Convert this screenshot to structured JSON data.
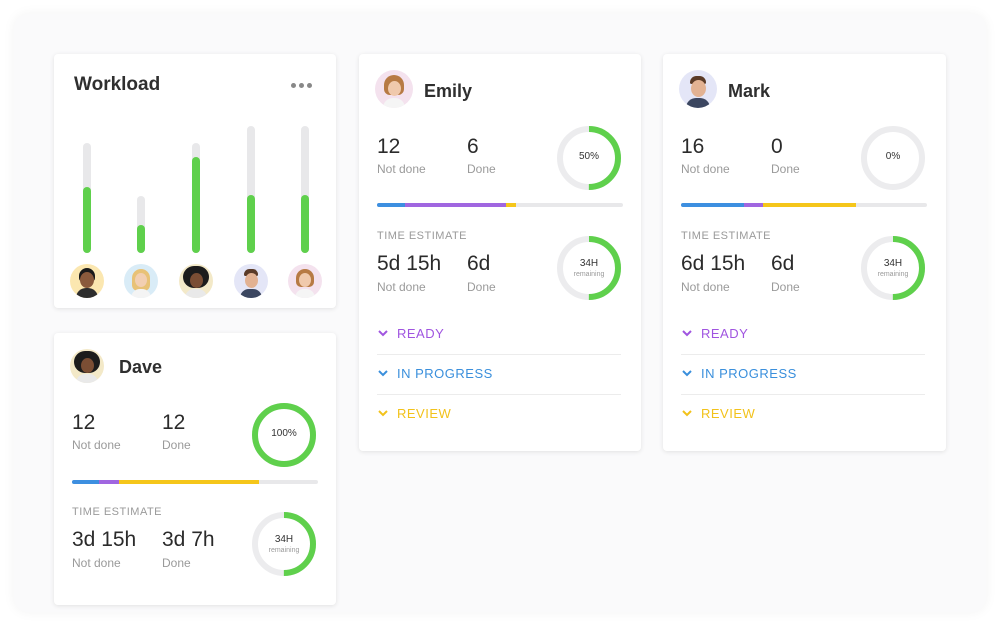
{
  "workload": {
    "title": "Workload",
    "menu_icon": "more-horizontal-icon",
    "bars": [
      {
        "person": "Man with beard",
        "total": 110,
        "filled": 66
      },
      {
        "person": "Blonde woman",
        "total": 57,
        "filled": 28
      },
      {
        "person": "Dave",
        "total": 110,
        "filled": 96
      },
      {
        "person": "Mark",
        "total": 127,
        "filled": 58
      },
      {
        "person": "Emily",
        "total": 127,
        "filled": 58
      }
    ]
  },
  "emily": {
    "name": "Emily",
    "not_done_count": "12",
    "not_done_label": "Not done",
    "done_count": "6",
    "done_label": "Done",
    "completion": "50%",
    "completion_value": 0.5,
    "progress_segments": [
      {
        "color": "#3d8fe0",
        "fraction": 0.115
      },
      {
        "color": "#a066e0",
        "fraction": 0.41
      },
      {
        "color": "#f5c61a",
        "fraction": 0.04
      }
    ],
    "time_estimate_label": "TIME ESTIMATE",
    "time_not_done": "5d 15h",
    "time_not_done_label": "Not done",
    "time_done": "6d",
    "time_done_label": "Done",
    "remaining": "34H",
    "remaining_label": "remaining",
    "remaining_value": 0.5,
    "statuses": [
      {
        "label": "READY",
        "color": "#a055e0"
      },
      {
        "label": "IN PROGRESS",
        "color": "#3a8fdc"
      },
      {
        "label": "REVIEW",
        "color": "#f2c21b"
      }
    ]
  },
  "mark": {
    "name": "Mark",
    "not_done_count": "16",
    "not_done_label": "Not done",
    "done_count": "0",
    "done_label": "Done",
    "completion": "0%",
    "completion_value": 0,
    "progress_segments": [
      {
        "color": "#3d8fe0",
        "fraction": 0.255
      },
      {
        "color": "#a066e0",
        "fraction": 0.08
      },
      {
        "color": "#f5c61a",
        "fraction": 0.375
      }
    ],
    "time_estimate_label": "TIME ESTIMATE",
    "time_not_done": "6d 15h",
    "time_not_done_label": "Not done",
    "time_done": "6d",
    "time_done_label": "Done",
    "remaining": "34H",
    "remaining_label": "remaining",
    "remaining_value": 0.5,
    "statuses": [
      {
        "label": "READY",
        "color": "#a055e0"
      },
      {
        "label": "IN PROGRESS",
        "color": "#3a8fdc"
      },
      {
        "label": "REVIEW",
        "color": "#f2c21b"
      }
    ]
  },
  "dave": {
    "name": "Dave",
    "not_done_count": "12",
    "not_done_label": "Not done",
    "done_count": "12",
    "done_label": "Done",
    "completion": "100%",
    "completion_value": 1,
    "progress_segments": [
      {
        "color": "#3d8fe0",
        "fraction": 0.11
      },
      {
        "color": "#a066e0",
        "fraction": 0.08
      },
      {
        "color": "#f5c61a",
        "fraction": 0.57
      }
    ],
    "time_estimate_label": "TIME ESTIMATE",
    "time_not_done": "3d 15h",
    "time_not_done_label": "Not done",
    "time_done": "3d 7h",
    "time_done_label": "Done",
    "remaining": "34H",
    "remaining_label": "remaining",
    "remaining_value": 0.5
  }
}
